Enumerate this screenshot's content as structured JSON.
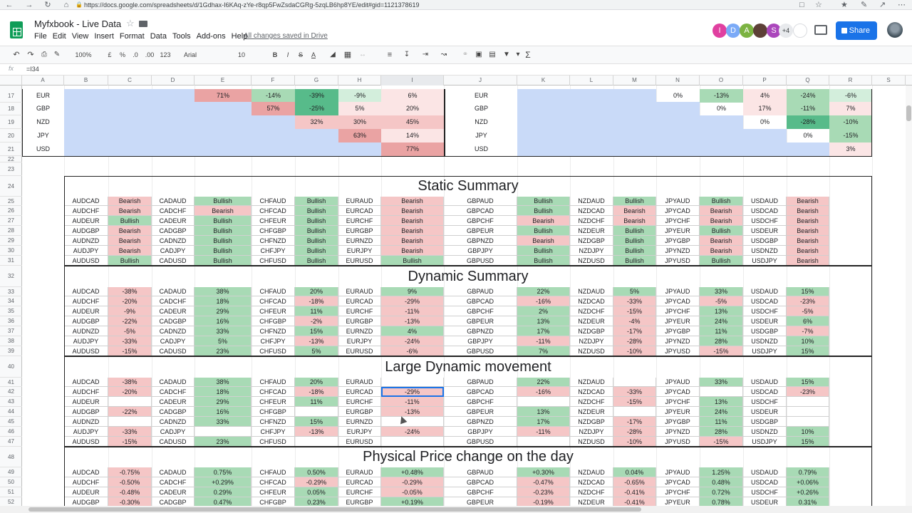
{
  "browser": {
    "url": "https://docs.google.com/spreadsheets/d/1Gdhax-I6KAq-zYe-r8qp5FwZsdaCGRg-5zqLB6hp8YE/edit#gid=1121378619"
  },
  "doc": {
    "title": "Myfxbook - Live Data",
    "saved": "All changes saved in Drive",
    "menus": [
      "File",
      "Edit",
      "View",
      "Insert",
      "Format",
      "Data",
      "Tools",
      "Add-ons",
      "Help"
    ]
  },
  "collab": {
    "avatars": [
      {
        "letter": "I",
        "color": "#e040a0"
      },
      {
        "letter": "D",
        "color": "#7baaf7"
      },
      {
        "letter": "A",
        "color": "#7cb342"
      },
      {
        "letter": "",
        "color": "#5d4037"
      },
      {
        "letter": "S",
        "color": "#ab47bc"
      }
    ],
    "more": "+4",
    "share": "Share"
  },
  "toolbar": {
    "zoom": "100%",
    "currency": "£",
    "percent": "%",
    "dec_less": ".0",
    "dec_more": ".00",
    "format": "123",
    "font": "Arial",
    "size": "10",
    "bold": "B",
    "italic": "I",
    "strike": "S",
    "color": "A"
  },
  "formula": {
    "fx": "fx",
    "value": "=I34"
  },
  "columns": [
    "A",
    "B",
    "C",
    "D",
    "E",
    "F",
    "G",
    "H",
    "I",
    "J",
    "K",
    "L",
    "M",
    "N",
    "O",
    "P",
    "Q",
    "R",
    "S"
  ],
  "rows": [
    "17",
    "18",
    "19",
    "20",
    "21",
    "22",
    "23",
    "24",
    "25",
    "26",
    "27",
    "28",
    "29",
    "30",
    "31",
    "32",
    "33",
    "34",
    "35",
    "36",
    "37",
    "38",
    "39",
    "40",
    "41",
    "42",
    "43",
    "44",
    "45",
    "46",
    "47",
    "48",
    "49",
    "50",
    "51",
    "52"
  ],
  "sections": {
    "static": "Static Summary",
    "dynamic": "Dynamic Summary",
    "large": "Large Dynamic movement",
    "physical": "Physical Price change on the day"
  },
  "top_matrix": [
    {
      "left": "EUR",
      "cells": [
        "",
        "",
        "",
        "71%",
        "-14%",
        "-39%",
        "-9%",
        "6%"
      ],
      "right": "EUR",
      "rcells": [
        "",
        "",
        "",
        "0%",
        "-13%",
        "4%",
        "-24%",
        "-6%"
      ]
    },
    {
      "left": "GBP",
      "cells": [
        "",
        "",
        "",
        "",
        "57%",
        "-25%",
        "5%",
        "20%"
      ],
      "right": "GBP",
      "rcells": [
        "",
        "",
        "",
        "",
        "0%",
        "17%",
        "-11%",
        "7%"
      ]
    },
    {
      "left": "NZD",
      "cells": [
        "",
        "",
        "",
        "",
        "",
        "32%",
        "30%",
        "45%"
      ],
      "right": "NZD",
      "rcells": [
        "",
        "",
        "",
        "",
        "",
        "0%",
        "-28%",
        "-10%"
      ]
    },
    {
      "left": "JPY",
      "cells": [
        "",
        "",
        "",
        "",
        "",
        "",
        "63%",
        "14%"
      ],
      "right": "JPY",
      "rcells": [
        "",
        "",
        "",
        "",
        "",
        "",
        "0%",
        "-15%"
      ]
    },
    {
      "left": "USD",
      "cells": [
        "",
        "",
        "",
        "",
        "",
        "",
        "",
        "77%"
      ],
      "right": "USD",
      "rcells": [
        "",
        "",
        "",
        "",
        "",
        "",
        "",
        "3%"
      ]
    }
  ],
  "static_rows": [
    [
      "AUDCAD",
      "Bearish",
      "CADAUD",
      "Bullish",
      "CHFAUD",
      "Bullish",
      "EURAUD",
      "Bearish",
      "GBPAUD",
      "Bullish",
      "NZDAUD",
      "Bullish",
      "JPYAUD",
      "Bullish",
      "USDAUD",
      "Bearish"
    ],
    [
      "AUDCHF",
      "Bearish",
      "CADCHF",
      "Bearish",
      "CHFCAD",
      "Bullish",
      "EURCAD",
      "Bearish",
      "GBPCAD",
      "Bullish",
      "NZDCAD",
      "Bearish",
      "JPYCAD",
      "Bearish",
      "USDCAD",
      "Bearish"
    ],
    [
      "AUDEUR",
      "Bullish",
      "CADEUR",
      "Bullish",
      "CHFEUR",
      "Bullish",
      "EURCHF",
      "Bearish",
      "GBPCHF",
      "Bearish",
      "NZDCHF",
      "Bearish",
      "JPYCHF",
      "Bearish",
      "USDCHF",
      "Bearish"
    ],
    [
      "AUDGBP",
      "Bearish",
      "CADGBP",
      "Bullish",
      "CHFGBP",
      "Bullish",
      "EURGBP",
      "Bearish",
      "GBPEUR",
      "Bullish",
      "NZDEUR",
      "Bullish",
      "JPYEUR",
      "Bullish",
      "USDEUR",
      "Bearish"
    ],
    [
      "AUDNZD",
      "Bearish",
      "CADNZD",
      "Bullish",
      "CHFNZD",
      "Bullish",
      "EURNZD",
      "Bearish",
      "GBPNZD",
      "Bearish",
      "NZDGBP",
      "Bullish",
      "JPYGBP",
      "Bearish",
      "USDGBP",
      "Bearish"
    ],
    [
      "AUDJPY",
      "Bearish",
      "CADJPY",
      "Bullish",
      "CHFJPY",
      "Bullish",
      "EURJPY",
      "Bearish",
      "GBPJPY",
      "Bullish",
      "NZDJPY",
      "Bullish",
      "JPYNZD",
      "Bearish",
      "USDNZD",
      "Bearish"
    ],
    [
      "AUDUSD",
      "Bullish",
      "CADUSD",
      "Bullish",
      "CHFUSD",
      "Bullish",
      "EURUSD",
      "Bullish",
      "GBPUSD",
      "Bullish",
      "NZDUSD",
      "Bullish",
      "JPYUSD",
      "Bullish",
      "USDJPY",
      "Bearish"
    ]
  ],
  "dynamic_rows": [
    [
      "AUDCAD",
      "-38%",
      "CADAUD",
      "38%",
      "CHFAUD",
      "20%",
      "EURAUD",
      "9%",
      "GBPAUD",
      "22%",
      "NZDAUD",
      "5%",
      "JPYAUD",
      "33%",
      "USDAUD",
      "15%"
    ],
    [
      "AUDCHF",
      "-20%",
      "CADCHF",
      "18%",
      "CHFCAD",
      "-18%",
      "EURCAD",
      "-29%",
      "GBPCAD",
      "-16%",
      "NZDCAD",
      "-33%",
      "JPYCAD",
      "-5%",
      "USDCAD",
      "-23%"
    ],
    [
      "AUDEUR",
      "-9%",
      "CADEUR",
      "29%",
      "CHFEUR",
      "11%",
      "EURCHF",
      "-11%",
      "GBPCHF",
      "2%",
      "NZDCHF",
      "-15%",
      "JPYCHF",
      "13%",
      "USDCHF",
      "-5%"
    ],
    [
      "AUDGBP",
      "-22%",
      "CADGBP",
      "16%",
      "CHFGBP",
      "-2%",
      "EURGBP",
      "-13%",
      "GBPEUR",
      "13%",
      "NZDEUR",
      "-4%",
      "JPYEUR",
      "24%",
      "USDEUR",
      "6%"
    ],
    [
      "AUDNZD",
      "-5%",
      "CADNZD",
      "33%",
      "CHFNZD",
      "15%",
      "EURNZD",
      "4%",
      "GBPNZD",
      "17%",
      "NZDGBP",
      "-17%",
      "JPYGBP",
      "11%",
      "USDGBP",
      "-7%"
    ],
    [
      "AUDJPY",
      "-33%",
      "CADJPY",
      "5%",
      "CHFJPY",
      "-13%",
      "EURJPY",
      "-24%",
      "GBPJPY",
      "-11%",
      "NZDJPY",
      "-28%",
      "JPYNZD",
      "28%",
      "USDNZD",
      "10%"
    ],
    [
      "AUDUSD",
      "-15%",
      "CADUSD",
      "23%",
      "CHFUSD",
      "5%",
      "EURUSD",
      "-6%",
      "GBPUSD",
      "7%",
      "NZDUSD",
      "-10%",
      "JPYUSD",
      "-15%",
      "USDJPY",
      "15%"
    ]
  ],
  "large_rows": [
    [
      "AUDCAD",
      "-38%",
      "CADAUD",
      "38%",
      "CHFAUD",
      "20%",
      "EURAUD",
      "",
      "GBPAUD",
      "22%",
      "NZDAUD",
      "",
      "JPYAUD",
      "33%",
      "USDAUD",
      "15%"
    ],
    [
      "AUDCHF",
      "-20%",
      "CADCHF",
      "18%",
      "CHFCAD",
      "-18%",
      "EURCAD",
      "-29%",
      "GBPCAD",
      "-16%",
      "NZDCAD",
      "-33%",
      "JPYCAD",
      "",
      "USDCAD",
      "-23%"
    ],
    [
      "AUDEUR",
      "",
      "CADEUR",
      "29%",
      "CHFEUR",
      "11%",
      "EURCHF",
      "-11%",
      "GBPCHF",
      "",
      "NZDCHF",
      "-15%",
      "JPYCHF",
      "13%",
      "USDCHF",
      ""
    ],
    [
      "AUDGBP",
      "-22%",
      "CADGBP",
      "16%",
      "CHFGBP",
      "",
      "EURGBP",
      "-13%",
      "GBPEUR",
      "13%",
      "NZDEUR",
      "",
      "JPYEUR",
      "24%",
      "USDEUR",
      ""
    ],
    [
      "AUDNZD",
      "",
      "CADNZD",
      "33%",
      "CHFNZD",
      "15%",
      "EURNZD",
      "",
      "GBPNZD",
      "17%",
      "NZDGBP",
      "-17%",
      "JPYGBP",
      "11%",
      "USDGBP",
      ""
    ],
    [
      "AUDJPY",
      "-33%",
      "CADJPY",
      "",
      "CHFJPY",
      "-13%",
      "EURJPY",
      "-24%",
      "GBPJPY",
      "-11%",
      "NZDJPY",
      "-28%",
      "JPYNZD",
      "28%",
      "USDNZD",
      "10%"
    ],
    [
      "AUDUSD",
      "-15%",
      "CADUSD",
      "23%",
      "CHFUSD",
      "",
      "EURUSD",
      "",
      "GBPUSD",
      "",
      "NZDUSD",
      "-10%",
      "JPYUSD",
      "-15%",
      "USDJPY",
      "15%"
    ]
  ],
  "physical_rows": [
    [
      "AUDCAD",
      "-0.75%",
      "CADAUD",
      "0.75%",
      "CHFAUD",
      "0.50%",
      "EURAUD",
      "+0.48%",
      "GBPAUD",
      "+0.30%",
      "NZDAUD",
      "0.04%",
      "JPYAUD",
      "1.25%",
      "USDAUD",
      "0.79%"
    ],
    [
      "AUDCHF",
      "-0.50%",
      "CADCHF",
      "+0.29%",
      "CHFCAD",
      "-0.29%",
      "EURCAD",
      "-0.29%",
      "GBPCAD",
      "-0.47%",
      "NZDCAD",
      "-0.65%",
      "JPYCAD",
      "0.48%",
      "USDCAD",
      "+0.06%"
    ],
    [
      "AUDEUR",
      "-0.48%",
      "CADEUR",
      "0.29%",
      "CHFEUR",
      "0.05%",
      "EURCHF",
      "-0.05%",
      "GBPCHF",
      "-0.23%",
      "NZDCHF",
      "-0.41%",
      "JPYCHF",
      "0.72%",
      "USDCHF",
      "+0.26%"
    ],
    [
      "AUDGBP",
      "-0.30%",
      "CADGBP",
      "0.47%",
      "CHFGBP",
      "0.23%",
      "EURGBP",
      "+0.19%",
      "GBPEUR",
      "-0.19%",
      "NZDEUR",
      "-0.41%",
      "JPYEUR",
      "0.78%",
      "USDEUR",
      "0.31%"
    ]
  ]
}
